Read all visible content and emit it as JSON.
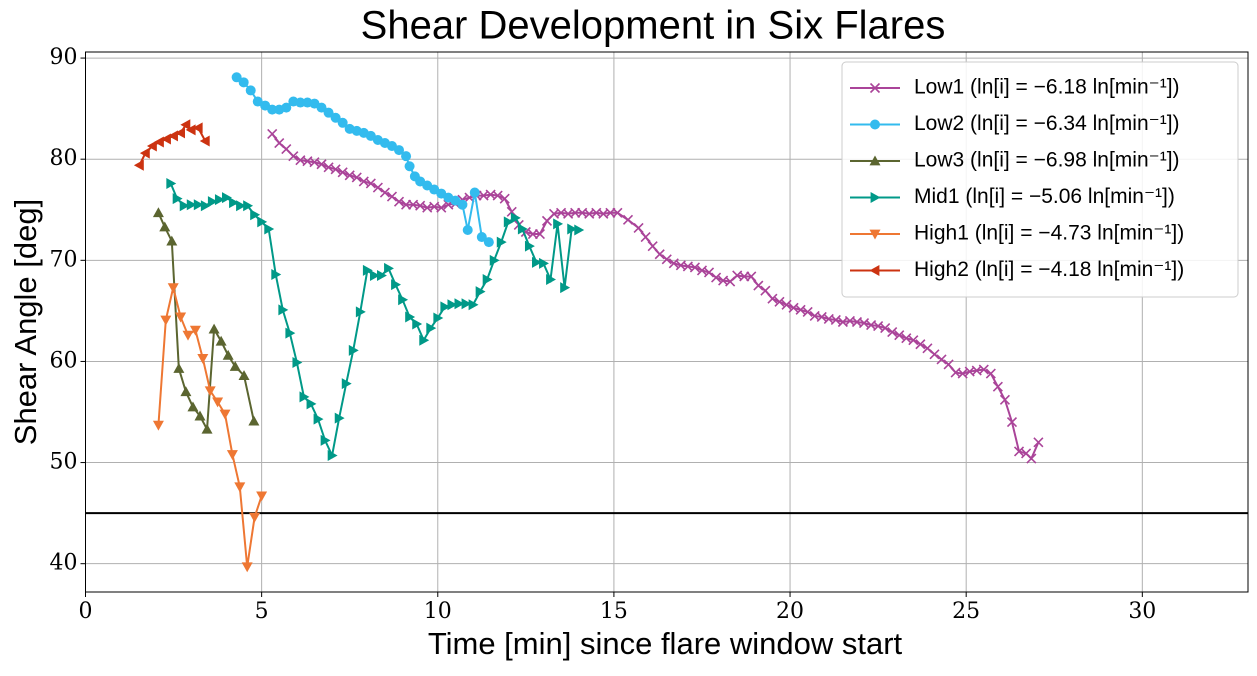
{
  "chart_data": {
    "type": "line",
    "title": "Shear Development in Six Flares",
    "x_label": "Time [min] since flare window start",
    "y_label": "Shear Angle [deg]",
    "xlim": [
      0,
      33
    ],
    "ylim": [
      37.2,
      90.6
    ],
    "xticks": [
      0,
      5,
      10,
      15,
      20,
      25,
      30
    ],
    "yticks": [
      40,
      50,
      60,
      70,
      80,
      90
    ],
    "grid": true,
    "legend": "upper right",
    "hline": 45,
    "hline_color": "#000000",
    "series": [
      {
        "name": "Low1 (ln[i] = −6.18 ln[min⁻¹])",
        "color": "#aa4499",
        "marker": "x",
        "x": [
          5.3,
          5.5,
          5.7,
          5.9,
          6.1,
          6.3,
          6.5,
          6.7,
          6.9,
          7.1,
          7.3,
          7.5,
          7.7,
          7.9,
          8.1,
          8.3,
          8.5,
          8.7,
          8.9,
          9.1,
          9.3,
          9.5,
          9.7,
          9.9,
          10.1,
          10.3,
          10.5,
          10.7,
          10.9,
          11.1,
          11.3,
          11.5,
          11.7,
          11.9,
          12.1,
          12.3,
          12.5,
          12.7,
          12.9,
          13.1,
          13.3,
          13.5,
          13.7,
          13.9,
          14.1,
          14.3,
          14.5,
          14.7,
          14.9,
          15.1,
          15.4,
          15.7,
          15.9,
          16.1,
          16.3,
          16.5,
          16.7,
          16.9,
          17.1,
          17.3,
          17.5,
          17.7,
          17.9,
          18.1,
          18.3,
          18.5,
          18.7,
          18.9,
          19.1,
          19.3,
          19.5,
          19.7,
          19.9,
          20.1,
          20.3,
          20.5,
          20.7,
          20.9,
          21.1,
          21.3,
          21.5,
          21.7,
          21.9,
          22.1,
          22.3,
          22.5,
          22.7,
          22.9,
          23.1,
          23.3,
          23.5,
          23.7,
          23.9,
          24.1,
          24.3,
          24.5,
          24.7,
          24.9,
          25.1,
          25.3,
          25.5,
          25.7,
          25.9,
          26.1,
          26.3,
          26.5,
          26.7,
          26.85,
          27.05
        ],
        "values": [
          82.5,
          81.6,
          81.0,
          80.3,
          79.9,
          79.8,
          79.7,
          79.5,
          79.2,
          79.0,
          78.7,
          78.4,
          78.2,
          77.8,
          77.6,
          77.2,
          76.7,
          76.3,
          75.8,
          75.5,
          75.5,
          75.4,
          75.2,
          75.3,
          75.2,
          75.5,
          75.6,
          76.0,
          76.2,
          76.4,
          76.4,
          76.5,
          76.4,
          76.1,
          74.8,
          73.5,
          72.8,
          72.6,
          72.6,
          73.9,
          74.6,
          74.7,
          74.6,
          74.7,
          74.7,
          74.6,
          74.7,
          74.6,
          74.7,
          74.7,
          74.0,
          73.2,
          72.3,
          71.4,
          70.6,
          70.1,
          69.7,
          69.5,
          69.4,
          69.3,
          69.0,
          68.8,
          68.3,
          68.0,
          67.9,
          68.5,
          68.4,
          68.4,
          67.5,
          67.0,
          66.2,
          65.9,
          65.6,
          65.3,
          65.1,
          64.9,
          64.5,
          64.4,
          64.2,
          64.1,
          63.9,
          64.0,
          63.9,
          63.8,
          63.6,
          63.5,
          63.3,
          62.9,
          62.6,
          62.3,
          62.1,
          61.7,
          61.3,
          60.7,
          60.2,
          59.7,
          58.9,
          58.8,
          59.0,
          59.1,
          59.2,
          58.8,
          57.5,
          56.2,
          54.0,
          51.1,
          50.9,
          50.4,
          52.0
        ]
      },
      {
        "name": "Low2 (ln[i] = −6.34 ln[min⁻¹])",
        "color": "#33bbee",
        "marker": "o",
        "x": [
          4.29,
          4.49,
          4.69,
          4.89,
          5.1,
          5.3,
          5.5,
          5.7,
          5.9,
          6.1,
          6.3,
          6.5,
          6.7,
          6.9,
          7.1,
          7.3,
          7.5,
          7.7,
          7.9,
          8.1,
          8.3,
          8.5,
          8.7,
          8.9,
          9.1,
          9.2,
          9.35,
          9.5,
          9.7,
          9.9,
          10.1,
          10.3,
          10.5,
          10.7,
          10.85,
          11.05,
          11.25,
          11.45
        ],
        "values": [
          88.1,
          87.6,
          86.8,
          85.7,
          85.3,
          84.9,
          84.9,
          85.1,
          85.7,
          85.6,
          85.6,
          85.5,
          85.1,
          84.6,
          84.1,
          83.6,
          83.0,
          82.8,
          82.6,
          82.3,
          81.9,
          81.6,
          81.3,
          80.9,
          80.3,
          79.3,
          78.3,
          77.8,
          77.4,
          77.0,
          76.6,
          76.2,
          75.9,
          75.5,
          73.0,
          76.7,
          72.3,
          71.8
        ]
      },
      {
        "name": "Low3 (ln[i] = −6.98 ln[min⁻¹])",
        "color": "#5b6530",
        "marker": "^",
        "x": [
          2.07,
          2.25,
          2.45,
          2.65,
          2.85,
          3.05,
          3.25,
          3.45,
          3.65,
          3.85,
          4.05,
          4.25,
          4.5,
          4.78
        ],
        "values": [
          74.7,
          73.3,
          71.9,
          59.3,
          57.0,
          55.5,
          54.6,
          53.3,
          63.2,
          62.0,
          60.6,
          59.5,
          58.6,
          54.1
        ]
      },
      {
        "name": "Mid1 (ln[i] = −5.06 ln[min⁻¹])",
        "color": "#009988",
        "marker": ">",
        "x": [
          2.42,
          2.6,
          2.8,
          3.0,
          3.2,
          3.4,
          3.6,
          3.8,
          4.0,
          4.2,
          4.4,
          4.6,
          4.8,
          5.0,
          5.2,
          5.4,
          5.6,
          5.8,
          6.0,
          6.2,
          6.4,
          6.6,
          6.8,
          7.0,
          7.2,
          7.4,
          7.6,
          7.8,
          8.0,
          8.2,
          8.4,
          8.6,
          8.8,
          9.0,
          9.2,
          9.4,
          9.6,
          9.8,
          10.0,
          10.2,
          10.4,
          10.6,
          10.8,
          11.0,
          11.2,
          11.4,
          11.6,
          11.8,
          12.0,
          12.2,
          12.4,
          12.6,
          12.8,
          13.0,
          13.2,
          13.4,
          13.6,
          13.8,
          14.0
        ],
        "values": [
          77.6,
          76.1,
          75.4,
          75.5,
          75.5,
          75.4,
          75.8,
          76.0,
          76.2,
          75.7,
          75.4,
          75.4,
          74.5,
          73.8,
          73.1,
          68.6,
          65.1,
          62.8,
          59.9,
          56.5,
          55.8,
          54.3,
          52.2,
          50.7,
          54.4,
          57.8,
          61.1,
          64.9,
          69.0,
          68.5,
          68.5,
          69.2,
          67.6,
          66.1,
          64.4,
          63.7,
          62.1,
          63.3,
          64.3,
          65.4,
          65.6,
          65.7,
          65.7,
          65.6,
          66.9,
          68.1,
          70.0,
          71.8,
          73.8,
          74.2,
          73.1,
          71.4,
          69.8,
          69.7,
          68.1,
          73.6,
          67.3,
          73.1,
          73.0
        ]
      },
      {
        "name": "High1 (ln[i] = −4.73 ln[min⁻¹])",
        "color": "#ee7733",
        "marker": "v",
        "x": [
          2.07,
          2.28,
          2.49,
          2.7,
          2.91,
          3.12,
          3.33,
          3.54,
          3.75,
          3.96,
          4.17,
          4.38,
          4.59,
          4.8,
          5.0
        ],
        "values": [
          53.7,
          64.1,
          67.3,
          64.4,
          62.6,
          63.1,
          60.3,
          57.1,
          56.0,
          54.8,
          50.8,
          47.6,
          39.7,
          44.6,
          46.7
        ]
      },
      {
        "name": "High2 (ln[i] = −4.18 ln[min⁻¹])",
        "color": "#cc3311",
        "marker": "<",
        "x": [
          1.53,
          1.7,
          1.9,
          2.1,
          2.3,
          2.5,
          2.7,
          2.85,
          3.0,
          3.2,
          3.4
        ],
        "values": [
          79.4,
          80.6,
          81.3,
          81.7,
          82.0,
          82.3,
          82.6,
          83.4,
          82.9,
          83.1,
          81.8
        ]
      }
    ]
  }
}
